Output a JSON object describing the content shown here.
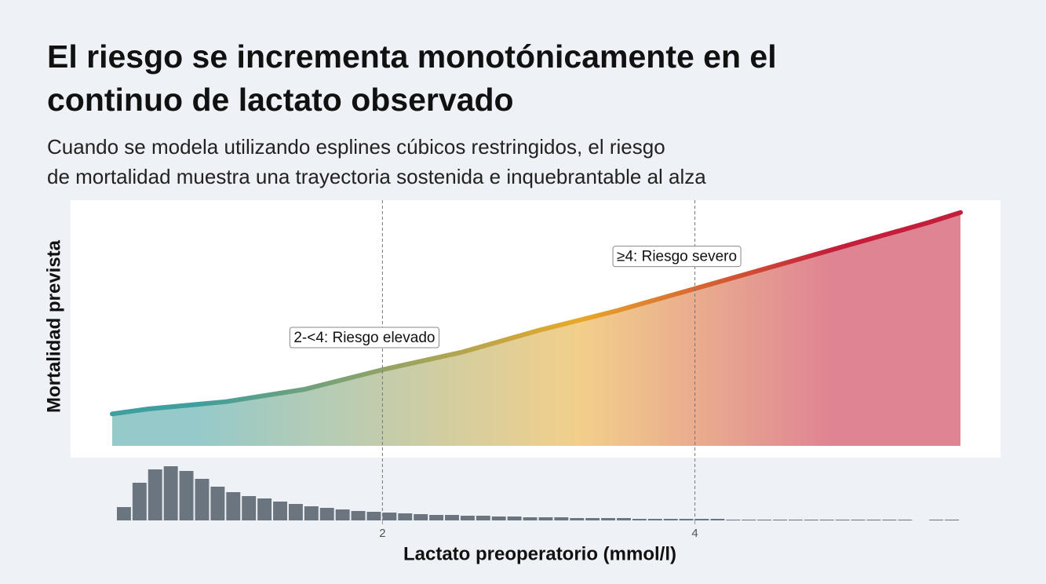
{
  "chart_data": [
    {
      "type": "area",
      "title": [
        "El riesgo se incrementa monotónicamente en el",
        "continuo de lactato observado"
      ],
      "subtitle": [
        "Cuando se modela utilizando esplines cúbicos restringidos, el riesgo",
        "de mortalidad muestra una trayectoria sostenida e inquebrantable al alza"
      ],
      "ylabel": "Mortalidad prevista",
      "x": [
        0.27,
        0.5,
        1,
        1.5,
        2,
        2.5,
        3,
        3.5,
        4,
        4.5,
        5,
        5.5,
        5.7
      ],
      "values": [
        13,
        15,
        18,
        23,
        31,
        38,
        47,
        55,
        64,
        73,
        82,
        91,
        95
      ],
      "xlim": [
        0.27,
        5.7
      ],
      "ylim": [
        0,
        100
      ],
      "colors": [
        "#3f9e9e",
        "#e8a82a",
        "#c41e3a"
      ],
      "vlines": [
        2,
        4
      ],
      "annotations": [
        "2-<4: Riesgo elevado",
        "≥4: Riesgo severo"
      ]
    },
    {
      "type": "histogram",
      "bins": [
        0.3,
        0.4,
        0.5,
        0.6,
        0.7,
        0.8,
        0.9,
        1.0,
        1.1,
        1.2,
        1.3,
        1.4,
        1.5,
        1.6,
        1.7,
        1.8,
        1.9,
        2.0,
        2.1,
        2.2,
        2.3,
        2.4,
        2.5,
        2.6,
        2.7,
        2.8,
        2.9,
        3.0,
        3.1,
        3.2,
        3.3,
        3.4,
        3.5,
        3.6,
        3.7,
        3.8,
        3.9,
        4.0,
        4.1,
        4.2,
        4.3,
        4.4,
        4.5,
        4.6,
        4.7,
        4.8,
        4.9,
        5.0,
        5.1,
        5.2,
        5.3,
        5.4,
        5.5,
        5.6,
        5.7
      ],
      "counts": [
        17,
        48,
        65,
        69,
        63,
        53,
        43,
        36,
        31,
        28,
        24,
        21,
        18,
        16,
        14,
        12,
        11,
        10,
        9,
        8,
        7,
        7,
        6,
        6,
        5,
        5,
        4,
        4,
        4,
        3,
        3,
        3,
        3,
        2,
        2,
        2,
        2,
        2,
        2,
        1,
        1,
        1,
        1,
        1,
        1,
        1,
        1,
        1,
        1,
        1,
        1,
        0,
        1,
        1
      ],
      "color": "#6b7580",
      "xlim": [
        0.27,
        5.7
      ],
      "ylim": [
        0,
        70
      ],
      "xticks": [
        2,
        4
      ],
      "xlabel": "Lactato preoperatorio (mmol/l)"
    }
  ]
}
